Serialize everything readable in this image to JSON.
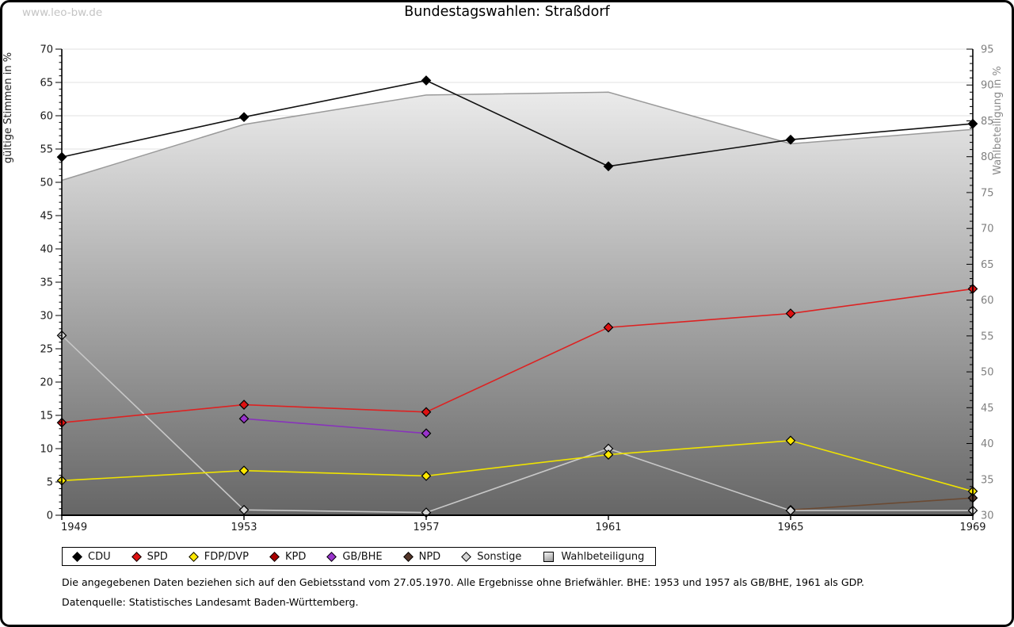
{
  "page": {
    "watermark": "www.leo-bw.de",
    "title": "Bundestagswahlen: Straßdorf",
    "footnote1": "Die angegebenen Daten beziehen sich auf den Gebietsstand vom 27.05.1970. Alle Ergebnisse ohne Briefwähler. BHE: 1953 und 1957 als GB/BHE, 1961 als GDP.",
    "footnote2": "Datenquelle: Statistisches Landesamt Baden-Württemberg."
  },
  "chart_data": {
    "type": "line",
    "title": "Bundestagswahlen: Straßdorf",
    "x": [
      1949,
      1953,
      1957,
      1961,
      1965,
      1969
    ],
    "left_axis": {
      "label": "gültige Stimmen in %",
      "min": 0,
      "max": 70,
      "tick_step": 5
    },
    "right_axis": {
      "label": "Wahlbeteiligung in %",
      "min": 30,
      "max": 95,
      "tick_step": 5
    },
    "grid": "horizontal",
    "legend_position": "bottom",
    "series": [
      {
        "name": "CDU",
        "color": "#000000",
        "line_color": "#111111",
        "marker": "diamond",
        "axis": "left",
        "values": [
          53.8,
          59.8,
          65.3,
          52.4,
          56.4,
          58.8
        ]
      },
      {
        "name": "SPD",
        "color": "#dd1111",
        "line_color": "#dd2222",
        "marker": "diamond",
        "axis": "left",
        "values": [
          13.9,
          16.6,
          15.5,
          28.2,
          30.3,
          34.0
        ]
      },
      {
        "name": "FDP/DVP",
        "color": "#ffe800",
        "line_color": "#efe300",
        "marker": "diamond",
        "axis": "left",
        "values": [
          5.2,
          6.7,
          5.9,
          9.1,
          11.2,
          3.6
        ]
      },
      {
        "name": "KPD",
        "color": "#aa0000",
        "line_color": "#aa0000",
        "marker": "diamond",
        "axis": "left",
        "values": [
          null,
          null,
          null,
          null,
          null,
          null
        ]
      },
      {
        "name": "GB/BHE",
        "color": "#9933cc",
        "line_color": "#8833bb",
        "marker": "diamond",
        "axis": "left",
        "values": [
          null,
          14.5,
          12.3,
          null,
          null,
          null
        ]
      },
      {
        "name": "NPD",
        "color": "#55372a",
        "line_color": "#6b4a33",
        "marker": "diamond",
        "axis": "left",
        "values": [
          null,
          null,
          null,
          null,
          0.8,
          2.6
        ]
      },
      {
        "name": "Sonstige",
        "color": "#d4d4d4",
        "line_color": "#c8c8c8",
        "marker": "diamond",
        "axis": "left",
        "values": [
          27.0,
          0.8,
          0.4,
          10.0,
          0.7,
          0.7
        ]
      },
      {
        "name": "Wahlbeteiligung",
        "color": "#9a9a9a",
        "line_color": "#9a9a9a",
        "marker": "square",
        "axis": "right",
        "area": true,
        "values": [
          76.7,
          84.5,
          88.6,
          89.0,
          81.8,
          83.8
        ]
      }
    ]
  }
}
